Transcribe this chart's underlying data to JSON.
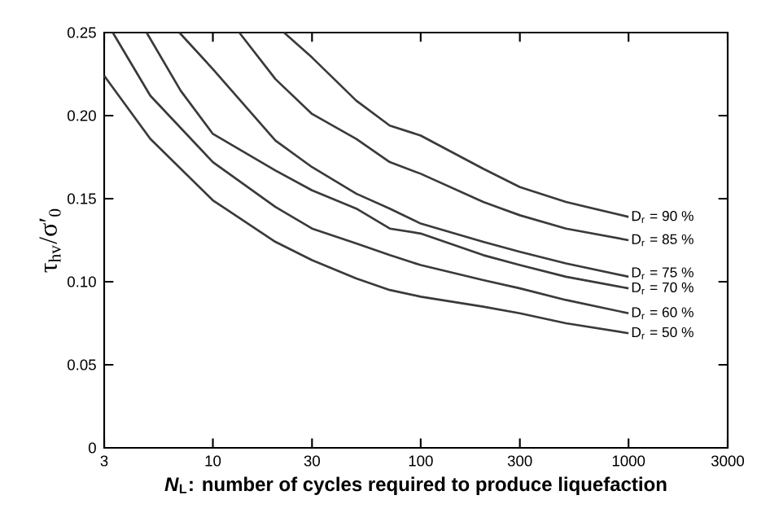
{
  "chart_data": {
    "type": "line",
    "xlabel": "*N*$_{L}$: number of cycles required to produce liquefaction",
    "ylabel": "τ$_{hv}$/σ′$_{0}$",
    "log": "x",
    "grid": false,
    "legend": false,
    "marker": "none",
    "line_style": "solid",
    "xlim": [
      3,
      3000
    ],
    "xticks": [
      3,
      10,
      30,
      100,
      300,
      1000,
      3000
    ],
    "ylim": [
      0,
      0.25
    ],
    "yticks": [
      0,
      {
        "value": 0.05,
        "label": "0.05"
      },
      {
        "value": 0.1,
        "label": "0.10"
      },
      {
        "value": 0.15,
        "label": "0.15"
      },
      {
        "value": 0.2,
        "label": "0.20"
      },
      0.25
    ],
    "series": [
      {
        "name": "D$_{r}$ = 90 %",
        "color": "#3a3a3a",
        "x": [
          22,
          30,
          49,
          71,
          100,
          200,
          300,
          500,
          1000
        ],
        "values": [
          0.25,
          0.235,
          0.209,
          0.194,
          0.188,
          0.168,
          0.157,
          0.148,
          0.139
        ]
      },
      {
        "name": "D$_{r}$ = 85 %",
        "color": "#3a3a3a",
        "x": [
          13.4,
          20,
          30,
          49,
          71,
          100,
          200,
          300,
          500,
          1000
        ],
        "values": [
          0.25,
          0.222,
          0.201,
          0.186,
          0.172,
          0.165,
          0.148,
          0.14,
          0.132,
          0.125
        ]
      },
      {
        "name": "D$_{r}$ = 75 %",
        "color": "#3a3a3a",
        "x": [
          6.9,
          10,
          20,
          30,
          49,
          71,
          100,
          200,
          300,
          500,
          1000
        ],
        "values": [
          0.25,
          0.228,
          0.185,
          0.169,
          0.153,
          0.144,
          0.135,
          0.124,
          0.118,
          0.111,
          0.103
        ]
      },
      {
        "name": "D$_{r}$ = 70 %",
        "color": "#3a3a3a",
        "x": [
          4.8,
          7,
          10,
          20,
          30,
          49,
          71,
          100,
          200,
          300,
          500,
          1000
        ],
        "values": [
          0.25,
          0.215,
          0.189,
          0.167,
          0.155,
          0.144,
          0.132,
          0.129,
          0.116,
          0.11,
          0.103,
          0.096
        ]
      },
      {
        "name": "D$_{r}$ = 60 %",
        "color": "#3a3a3a",
        "x": [
          3.3,
          5,
          10,
          20,
          30,
          49,
          71,
          100,
          200,
          300,
          500,
          1000
        ],
        "values": [
          0.25,
          0.212,
          0.172,
          0.145,
          0.132,
          0.123,
          0.116,
          0.11,
          0.101,
          0.096,
          0.089,
          0.081
        ]
      },
      {
        "name": "D$_{r}$ = 50 %",
        "color": "#3a3a3a",
        "x": [
          3,
          5,
          10,
          20,
          30,
          49,
          71,
          100,
          200,
          300,
          500,
          1000
        ],
        "values": [
          0.224,
          0.186,
          0.149,
          0.124,
          0.113,
          0.102,
          0.095,
          0.091,
          0.085,
          0.081,
          0.075,
          0.069
        ]
      }
    ]
  }
}
